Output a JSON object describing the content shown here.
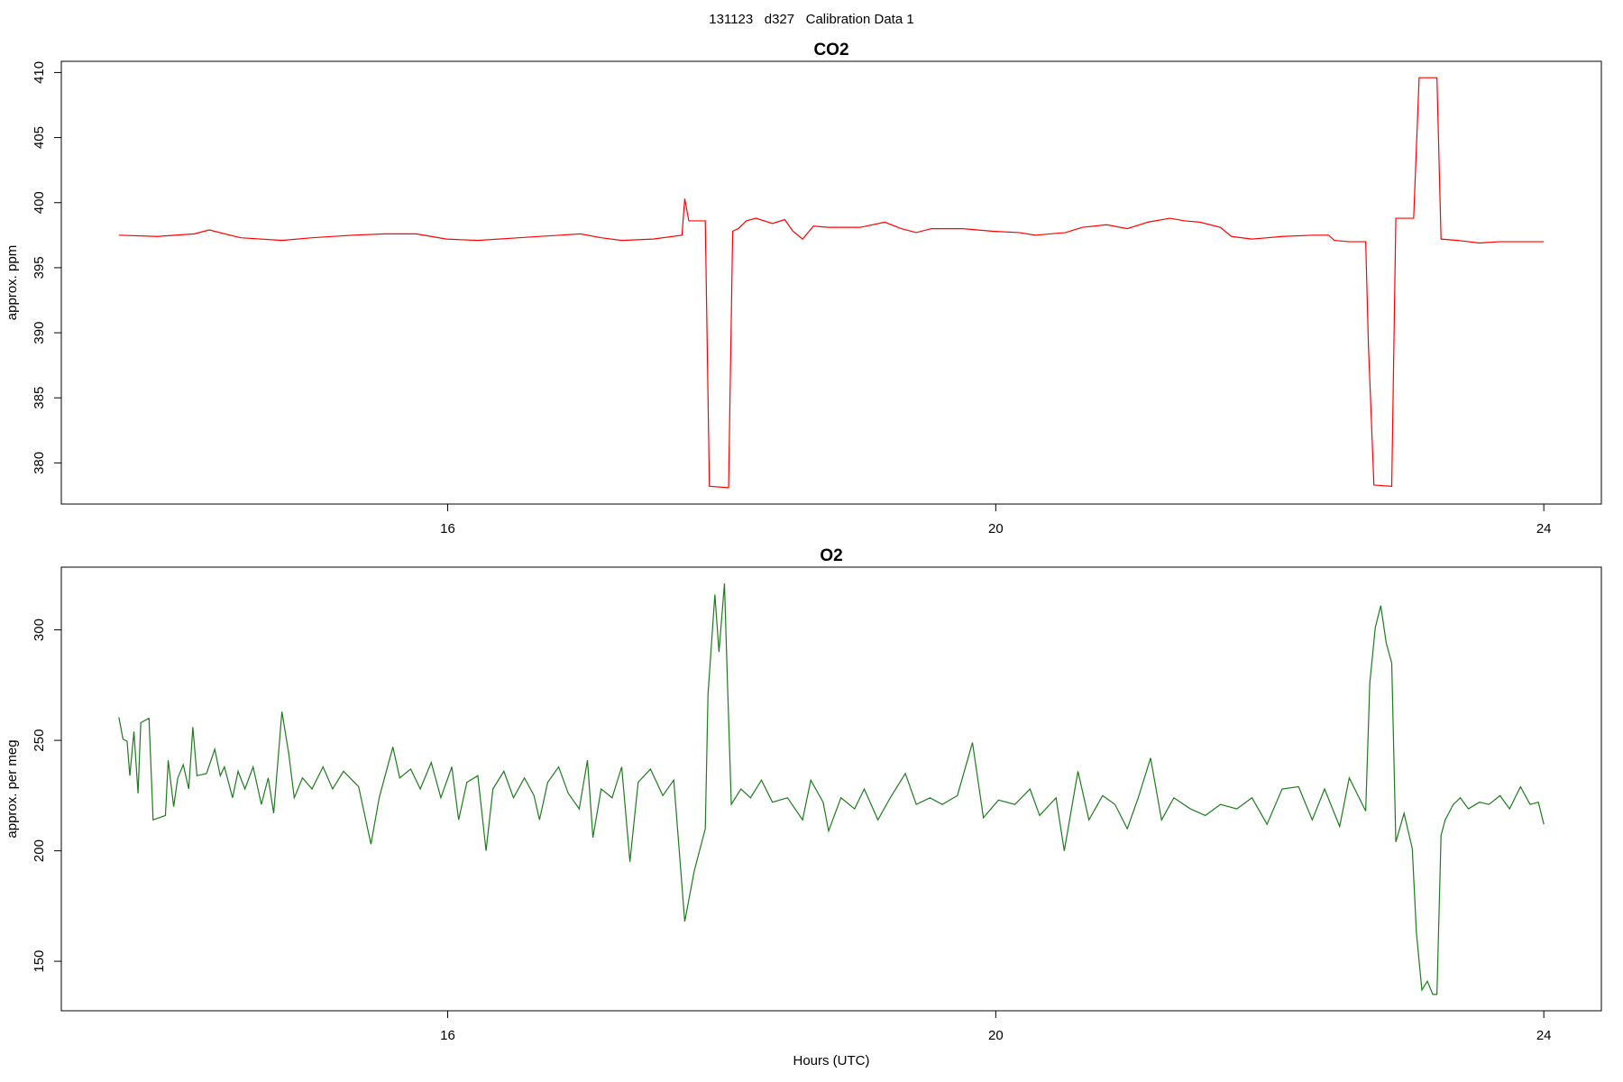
{
  "title": "131123   d327   Calibration Data 1",
  "chart_data": [
    {
      "type": "line",
      "title": "CO2",
      "y_label": "approx. ppm",
      "xlim": [
        13.18,
        24.42
      ],
      "ylim": [
        376.84,
        410.86
      ],
      "xticks": [
        16,
        20,
        24
      ],
      "yticks": [
        380,
        385,
        390,
        395,
        400,
        405,
        410
      ],
      "x": [
        13.6,
        13.88,
        14.15,
        14.26,
        14.49,
        14.79,
        15.01,
        15.31,
        15.54,
        15.77,
        15.99,
        16.22,
        16.52,
        16.82,
        16.97,
        17.12,
        17.27,
        17.5,
        17.71,
        17.73,
        17.76,
        17.88,
        17.91,
        18.05,
        18.08,
        18.12,
        18.18,
        18.25,
        18.37,
        18.46,
        18.52,
        18.59,
        18.67,
        18.78,
        19.01,
        19.19,
        19.31,
        19.42,
        19.53,
        19.76,
        19.98,
        20.17,
        20.29,
        20.51,
        20.63,
        20.81,
        20.96,
        21.11,
        21.27,
        21.38,
        21.49,
        21.64,
        21.72,
        21.87,
        22.09,
        22.32,
        22.43,
        22.47,
        22.58,
        22.7,
        22.72,
        22.76,
        22.89,
        22.92,
        23.05,
        23.09,
        23.22,
        23.25,
        23.37,
        23.53,
        23.68,
        23.83,
        24.0
      ],
      "series": [
        {
          "color": "#ff0000",
          "values": [
            397.5,
            397.4,
            397.6,
            397.9,
            397.3,
            397.1,
            397.3,
            397.5,
            397.6,
            397.6,
            397.2,
            397.1,
            397.3,
            397.5,
            397.6,
            397.3,
            397.1,
            397.2,
            397.5,
            400.3,
            398.6,
            398.6,
            378.2,
            378.1,
            397.8,
            398.0,
            398.6,
            398.8,
            398.4,
            398.7,
            397.8,
            397.2,
            398.2,
            398.1,
            398.1,
            398.5,
            398.0,
            397.7,
            398.0,
            398.0,
            397.8,
            397.7,
            397.5,
            397.7,
            398.1,
            398.3,
            398.0,
            398.5,
            398.8,
            398.6,
            398.5,
            398.1,
            397.4,
            397.2,
            397.4,
            397.5,
            397.5,
            397.1,
            397.0,
            397.0,
            389.0,
            378.3,
            378.2,
            398.8,
            398.8,
            409.6,
            409.6,
            397.2,
            397.1,
            396.9,
            397.0,
            397.0,
            397.0
          ]
        }
      ]
    },
    {
      "type": "line",
      "title": "O2",
      "y_label": "approx. per meg",
      "x_label": "Hours (UTC)",
      "xlim": [
        13.18,
        24.42
      ],
      "ylim": [
        127.6,
        328.4
      ],
      "xticks": [
        16,
        20,
        24
      ],
      "yticks": [
        150,
        200,
        250,
        300
      ],
      "x": [
        13.6,
        13.63,
        13.66,
        13.68,
        13.71,
        13.74,
        13.76,
        13.82,
        13.85,
        13.94,
        13.96,
        14.0,
        14.03,
        14.07,
        14.11,
        14.14,
        14.17,
        14.24,
        14.3,
        14.34,
        14.37,
        14.43,
        14.47,
        14.52,
        14.58,
        14.64,
        14.69,
        14.73,
        14.79,
        14.84,
        14.88,
        14.94,
        15.01,
        15.09,
        15.16,
        15.24,
        15.35,
        15.44,
        15.5,
        15.6,
        15.65,
        15.73,
        15.8,
        15.88,
        15.95,
        16.03,
        16.08,
        16.14,
        16.22,
        16.28,
        16.33,
        16.41,
        16.48,
        16.56,
        16.63,
        16.67,
        16.73,
        16.81,
        16.88,
        16.96,
        17.02,
        17.06,
        17.12,
        17.2,
        17.27,
        17.33,
        17.39,
        17.48,
        17.57,
        17.65,
        17.73,
        17.8,
        17.88,
        17.9,
        17.95,
        17.98,
        18.02,
        18.04,
        18.07,
        18.14,
        18.21,
        18.29,
        18.37,
        18.48,
        18.59,
        18.65,
        18.74,
        18.78,
        18.87,
        18.97,
        19.04,
        19.14,
        19.23,
        19.34,
        19.42,
        19.52,
        19.61,
        19.72,
        19.83,
        19.91,
        20.02,
        20.14,
        20.25,
        20.32,
        20.44,
        20.5,
        20.6,
        20.68,
        20.78,
        20.87,
        20.96,
        21.04,
        21.13,
        21.21,
        21.3,
        21.42,
        21.53,
        21.64,
        21.76,
        21.87,
        21.98,
        22.09,
        22.21,
        22.31,
        22.4,
        22.51,
        22.58,
        22.7,
        22.73,
        22.77,
        22.81,
        22.85,
        22.89,
        22.92,
        22.98,
        23.04,
        23.07,
        23.11,
        23.15,
        23.19,
        23.22,
        23.25,
        23.28,
        23.34,
        23.39,
        23.45,
        23.53,
        23.6,
        23.68,
        23.75,
        23.83,
        23.9,
        23.96,
        24.0
      ],
      "series": [
        {
          "color": "#1e7b1e",
          "values": [
            260.5,
            250.6,
            249.6,
            234,
            254,
            226,
            258,
            260,
            214,
            216,
            241,
            220,
            233,
            239,
            228,
            256,
            234,
            235,
            246,
            234,
            238,
            224,
            236,
            228,
            238,
            221,
            233,
            217,
            263,
            244,
            224,
            233,
            228,
            238,
            228,
            236,
            229,
            203,
            224,
            247,
            233,
            237,
            228,
            240,
            224,
            238,
            214,
            231,
            234,
            200,
            228,
            236,
            224,
            233,
            225,
            214,
            231,
            238,
            226,
            219,
            241,
            206,
            228,
            224,
            238,
            195,
            231,
            237,
            225,
            232,
            168,
            191,
            210,
            271,
            316,
            290,
            321,
            280,
            221,
            228,
            224,
            232,
            222,
            224,
            214,
            232,
            222,
            209,
            224,
            219,
            228,
            214,
            224,
            235,
            221,
            224,
            221,
            225,
            249,
            215,
            223,
            221,
            228,
            216,
            224,
            200,
            236,
            214,
            225,
            221,
            210,
            224,
            242,
            214,
            224,
            219,
            216,
            221,
            219,
            224,
            212,
            228,
            229,
            214,
            228,
            211,
            233,
            218,
            276,
            301,
            311,
            294,
            285,
            204,
            217,
            201,
            163,
            137,
            141,
            135,
            135,
            207,
            214,
            221,
            224,
            219,
            222,
            221,
            225,
            219,
            229,
            221,
            222,
            212
          ]
        }
      ]
    }
  ]
}
